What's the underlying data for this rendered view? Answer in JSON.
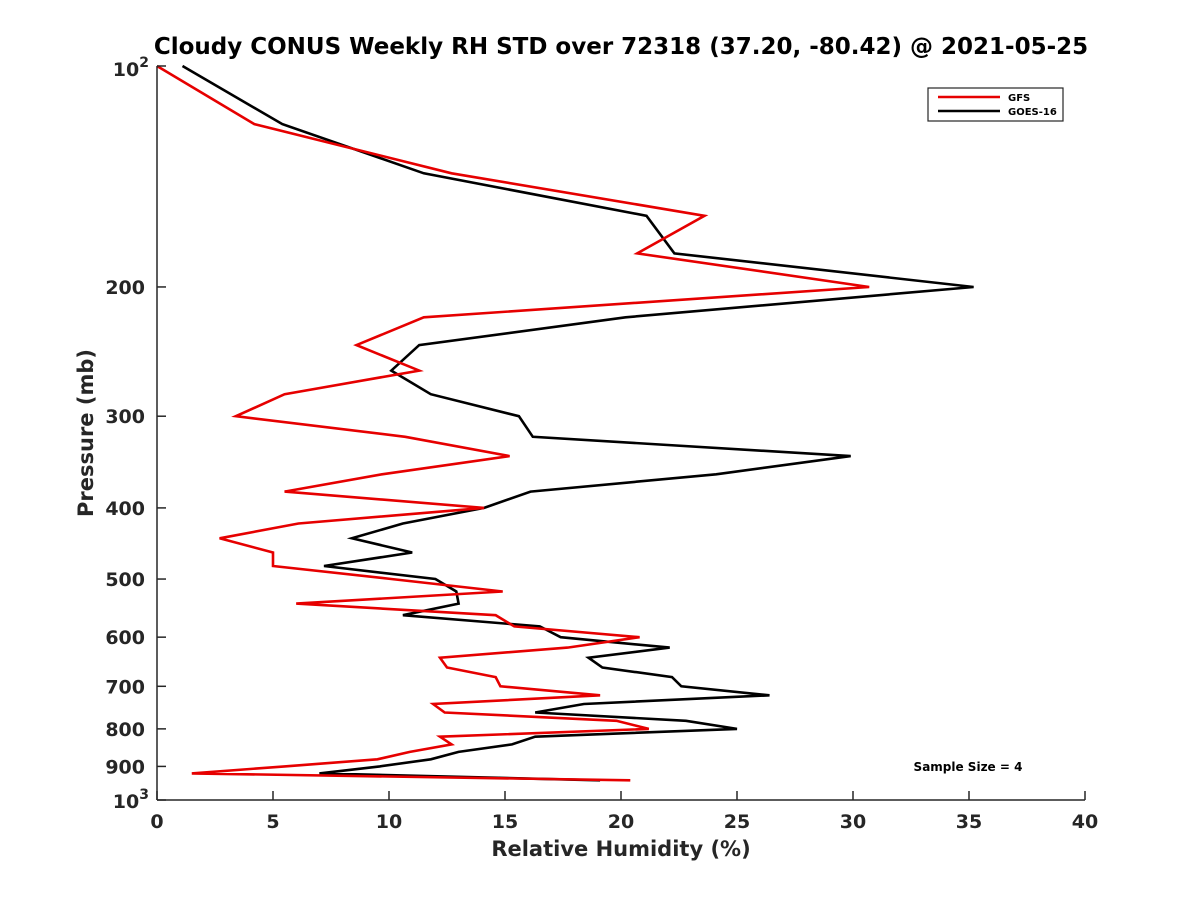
{
  "chart_data": {
    "type": "line",
    "title": "Cloudy CONUS Weekly RH STD over 72318 (37.20, -80.42) @ 2021-05-25",
    "xlabel": "Relative Humidity (%)",
    "ylabel": "Pressure (mb)",
    "xlim": [
      0,
      40
    ],
    "ylim": [
      100,
      1000
    ],
    "yscale": "log",
    "y_reversed": true,
    "grid": false,
    "legend_position": "top-right",
    "xticks": [
      0,
      5,
      10,
      15,
      20,
      25,
      30,
      35,
      40
    ],
    "xtick_labels": [
      "0",
      "5",
      "10",
      "15",
      "20",
      "25",
      "30",
      "35",
      "40"
    ],
    "yticks": [
      100,
      200,
      300,
      400,
      500,
      600,
      700,
      800,
      900,
      1000
    ],
    "ytick_labels": [
      {
        "base": "10",
        "exp": "2"
      },
      {
        "text": "200"
      },
      {
        "text": "300"
      },
      {
        "text": "400"
      },
      {
        "text": "500"
      },
      {
        "text": "600"
      },
      {
        "text": "700"
      },
      {
        "text": "800"
      },
      {
        "text": "900"
      },
      {
        "base": "10",
        "exp": "3"
      }
    ],
    "pressure_levels": [
      100,
      120,
      140,
      160,
      180,
      200,
      220,
      240,
      260,
      280,
      300,
      320,
      340,
      360,
      380,
      400,
      420,
      440,
      460,
      480,
      500,
      520,
      540,
      560,
      580,
      600,
      620,
      640,
      660,
      680,
      700,
      720,
      740,
      760,
      780,
      800,
      820,
      840,
      860,
      880,
      900,
      920,
      940
    ],
    "series": [
      {
        "name": "GFS",
        "color": "#e60000",
        "values": [
          0.0,
          4.2,
          12.7,
          23.6,
          20.7,
          30.7,
          11.5,
          8.6,
          11.3,
          5.5,
          3.4,
          10.7,
          15.2,
          9.7,
          5.5,
          14.1,
          6.1,
          2.7,
          5.0,
          5.0,
          10.1,
          14.9,
          6.0,
          14.6,
          15.4,
          20.8,
          17.7,
          12.2,
          12.5,
          14.6,
          14.8,
          19.1,
          11.9,
          12.4,
          19.8,
          21.2,
          12.2,
          12.7,
          10.9,
          9.5,
          5.5,
          1.5,
          20.4
        ]
      },
      {
        "name": "GOES-16",
        "color": "#000000",
        "values": [
          1.1,
          5.4,
          11.5,
          21.1,
          22.3,
          35.2,
          20.2,
          11.3,
          10.1,
          11.8,
          15.6,
          16.2,
          29.9,
          24.1,
          16.1,
          14.1,
          10.6,
          8.4,
          11.0,
          7.2,
          12.0,
          12.9,
          13.0,
          10.6,
          16.5,
          17.4,
          22.1,
          18.6,
          19.2,
          22.2,
          22.6,
          26.4,
          18.4,
          16.3,
          22.8,
          25.0,
          16.3,
          15.3,
          13.0,
          11.8,
          9.6,
          7.0,
          19.1
        ]
      }
    ],
    "annotation": "Sample Size = 4"
  }
}
